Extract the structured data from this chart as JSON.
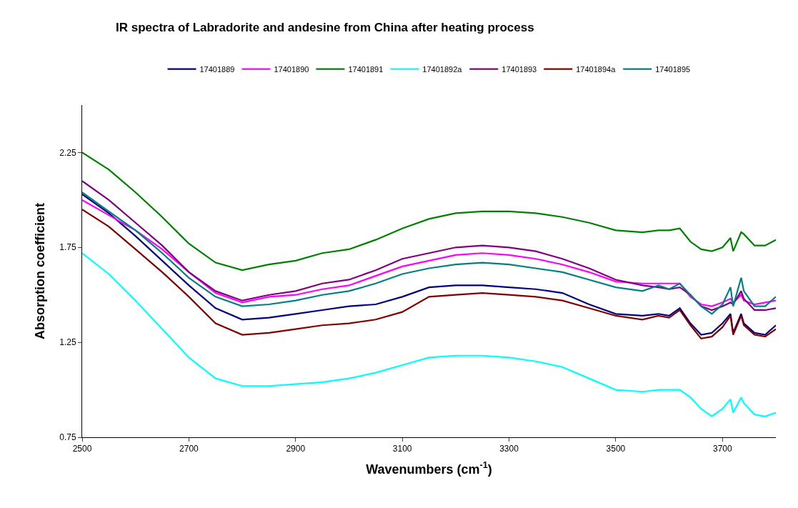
{
  "chart_data": {
    "type": "line",
    "title": "IR spectra of Labradorite and andesine from China after heating process",
    "xlabel": "Wavenumbers (cm$^{-1}$)",
    "ylabel": "Absorption coefficient",
    "x": [
      2500,
      2550,
      2600,
      2650,
      2700,
      2750,
      2800,
      2850,
      2900,
      2950,
      3000,
      3050,
      3100,
      3150,
      3200,
      3250,
      3300,
      3350,
      3400,
      3450,
      3500,
      3550,
      3580,
      3600,
      3620,
      3640,
      3660,
      3680,
      3700,
      3715,
      3720,
      3735,
      3740,
      3760,
      3780,
      3800
    ],
    "series": [
      {
        "name": "17401889",
        "color": "#000080",
        "values": [
          2.03,
          1.93,
          1.81,
          1.68,
          1.55,
          1.43,
          1.37,
          1.38,
          1.4,
          1.42,
          1.44,
          1.45,
          1.49,
          1.54,
          1.55,
          1.55,
          1.54,
          1.53,
          1.51,
          1.45,
          1.4,
          1.39,
          1.4,
          1.39,
          1.43,
          1.35,
          1.29,
          1.3,
          1.35,
          1.4,
          1.3,
          1.4,
          1.35,
          1.3,
          1.29,
          1.34
        ]
      },
      {
        "name": "17401890",
        "color": "#ff00ff",
        "values": [
          2.0,
          1.92,
          1.84,
          1.74,
          1.62,
          1.51,
          1.46,
          1.49,
          1.5,
          1.53,
          1.55,
          1.6,
          1.65,
          1.68,
          1.71,
          1.72,
          1.71,
          1.69,
          1.66,
          1.62,
          1.57,
          1.56,
          1.56,
          1.56,
          1.56,
          1.49,
          1.45,
          1.44,
          1.46,
          1.48,
          1.46,
          1.5,
          1.47,
          1.45,
          1.46,
          1.47
        ]
      },
      {
        "name": "17401891",
        "color": "#008000",
        "values": [
          2.25,
          2.16,
          2.04,
          1.91,
          1.77,
          1.67,
          1.63,
          1.66,
          1.68,
          1.72,
          1.74,
          1.79,
          1.85,
          1.9,
          1.93,
          1.94,
          1.94,
          1.93,
          1.91,
          1.88,
          1.84,
          1.83,
          1.84,
          1.84,
          1.85,
          1.78,
          1.74,
          1.73,
          1.75,
          1.8,
          1.73,
          1.83,
          1.82,
          1.76,
          1.76,
          1.79
        ]
      },
      {
        "name": "17401892a",
        "color": "#00ffff",
        "values": [
          1.72,
          1.61,
          1.47,
          1.32,
          1.17,
          1.06,
          1.02,
          1.02,
          1.03,
          1.04,
          1.06,
          1.09,
          1.13,
          1.17,
          1.18,
          1.18,
          1.17,
          1.15,
          1.12,
          1.06,
          1.0,
          0.99,
          1.0,
          1.0,
          1.0,
          0.96,
          0.9,
          0.86,
          0.9,
          0.95,
          0.88,
          0.96,
          0.93,
          0.87,
          0.86,
          0.88
        ]
      },
      {
        "name": "17401893",
        "color": "#800080",
        "values": [
          2.1,
          2.0,
          1.88,
          1.76,
          1.62,
          1.52,
          1.47,
          1.5,
          1.52,
          1.56,
          1.58,
          1.63,
          1.69,
          1.72,
          1.75,
          1.76,
          1.75,
          1.73,
          1.69,
          1.64,
          1.58,
          1.55,
          1.54,
          1.53,
          1.54,
          1.5,
          1.44,
          1.42,
          1.44,
          1.46,
          1.45,
          1.52,
          1.48,
          1.42,
          1.42,
          1.43
        ]
      },
      {
        "name": "17401894a",
        "color": "#800000",
        "values": [
          1.95,
          1.86,
          1.74,
          1.62,
          1.49,
          1.35,
          1.29,
          1.3,
          1.32,
          1.34,
          1.35,
          1.37,
          1.41,
          1.49,
          1.5,
          1.51,
          1.5,
          1.49,
          1.47,
          1.43,
          1.39,
          1.37,
          1.39,
          1.38,
          1.42,
          1.34,
          1.27,
          1.28,
          1.33,
          1.39,
          1.29,
          1.39,
          1.34,
          1.29,
          1.28,
          1.32
        ]
      },
      {
        "name": "17401895",
        "color": "#008080",
        "values": [
          2.04,
          1.94,
          1.84,
          1.72,
          1.59,
          1.49,
          1.44,
          1.45,
          1.47,
          1.5,
          1.52,
          1.56,
          1.61,
          1.64,
          1.66,
          1.67,
          1.66,
          1.64,
          1.62,
          1.58,
          1.54,
          1.52,
          1.55,
          1.53,
          1.56,
          1.5,
          1.44,
          1.4,
          1.45,
          1.54,
          1.44,
          1.59,
          1.52,
          1.44,
          1.44,
          1.49
        ]
      }
    ],
    "xlim": [
      2500,
      3800
    ],
    "xticks": [
      2500,
      2700,
      2900,
      3100,
      3300,
      3500,
      3700
    ],
    "ylim": [
      0.75,
      2.5
    ],
    "yticks": [
      0.75,
      1.25,
      1.75,
      2.25
    ],
    "legend": "top",
    "marker": "none",
    "line_style": "solid"
  }
}
